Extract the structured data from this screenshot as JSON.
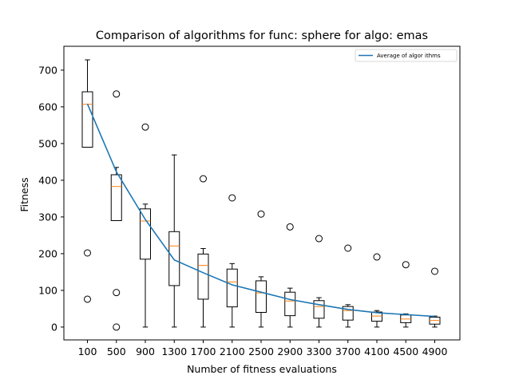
{
  "chart_data": {
    "type": "box",
    "title": "Comparison of algorithms for func: sphere for algo: emas",
    "xlabel": "Number of fitness evaluations",
    "ylabel": "Fitness",
    "categories": [
      "100",
      "500",
      "900",
      "1300",
      "1700",
      "2100",
      "2500",
      "2900",
      "3300",
      "3700",
      "4100",
      "4500",
      "4900"
    ],
    "ylim": [
      -35,
      765
    ],
    "yticks": [
      0,
      100,
      200,
      300,
      400,
      500,
      600,
      700
    ],
    "boxes": [
      {
        "label": "100",
        "whislo": 490,
        "q1": 490,
        "med": 607,
        "q3": 641,
        "whishi": 728,
        "fliers": [
          202,
          76
        ]
      },
      {
        "label": "500",
        "whislo": 290,
        "q1": 290,
        "med": 383,
        "q3": 415,
        "whishi": 435,
        "fliers": [
          635,
          94,
          0
        ]
      },
      {
        "label": "900",
        "whislo": 0,
        "q1": 185,
        "med": 289,
        "q3": 322,
        "whishi": 335,
        "fliers": [
          545
        ]
      },
      {
        "label": "1300",
        "whislo": 0,
        "q1": 113,
        "med": 221,
        "q3": 260,
        "whishi": 469,
        "fliers": []
      },
      {
        "label": "1700",
        "whislo": 0,
        "q1": 76,
        "med": 168,
        "q3": 199,
        "whishi": 214,
        "fliers": [
          404
        ]
      },
      {
        "label": "2100",
        "whislo": 0,
        "q1": 55,
        "med": 123,
        "q3": 158,
        "whishi": 173,
        "fliers": [
          352
        ]
      },
      {
        "label": "2500",
        "whislo": 0,
        "q1": 40,
        "med": 93,
        "q3": 126,
        "whishi": 137,
        "fliers": [
          308
        ]
      },
      {
        "label": "2900",
        "whislo": 0,
        "q1": 31,
        "med": 71,
        "q3": 95,
        "whishi": 106,
        "fliers": [
          273
        ]
      },
      {
        "label": "3300",
        "whislo": 0,
        "q1": 24,
        "med": 56,
        "q3": 72,
        "whishi": 80,
        "fliers": [
          241
        ]
      },
      {
        "label": "3700",
        "whislo": 0,
        "q1": 19,
        "med": 45,
        "q3": 56,
        "whishi": 61,
        "fliers": [
          215
        ]
      },
      {
        "label": "4100",
        "whislo": 0,
        "q1": 16,
        "med": 30,
        "q3": 41,
        "whishi": 45,
        "fliers": [
          191
        ]
      },
      {
        "label": "4500",
        "whislo": 0,
        "q1": 12,
        "med": 22,
        "q3": 33,
        "whishi": 36,
        "fliers": [
          170
        ]
      },
      {
        "label": "4900",
        "whislo": 0,
        "q1": 8,
        "med": 18,
        "q3": 27,
        "whishi": 30,
        "fliers": [
          152
        ]
      }
    ],
    "series": [
      {
        "name": "Average of algor ithms",
        "type": "line",
        "color": "#1f77b4",
        "values": [
          608,
          423,
          293,
          183,
          148,
          115,
          95,
          75,
          61,
          48,
          39,
          34,
          29
        ]
      }
    ],
    "colors": {
      "median": "#ff7f0e",
      "average_line": "#1f77b4",
      "box": "#000000"
    },
    "legend": {
      "position": "top-right"
    },
    "grid": false
  }
}
